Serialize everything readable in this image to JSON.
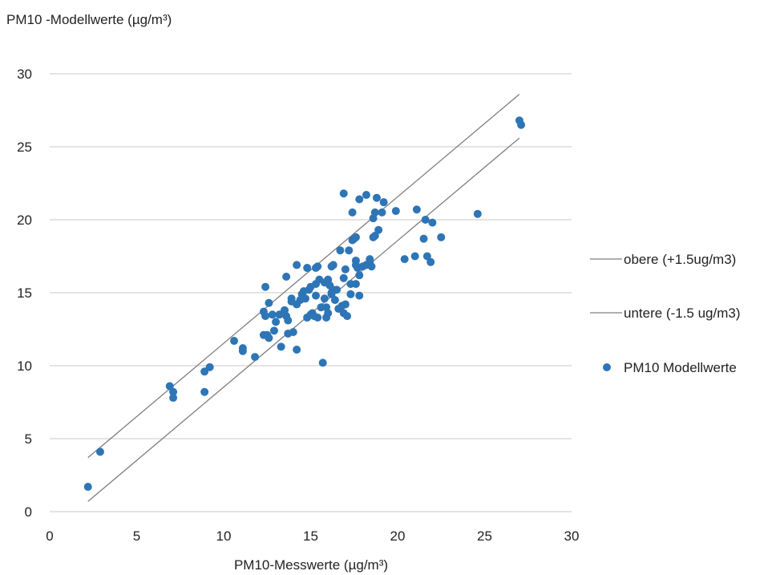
{
  "chart_data": {
    "type": "scatter",
    "ylabel": "PM10 -Modellwerte (µg/m³)",
    "xlabel": "PM10-Messwerte (µg/m³)",
    "xlim": [
      0,
      30
    ],
    "ylim": [
      0,
      30
    ],
    "x_ticks": [
      "0",
      "5",
      "10",
      "15",
      "20",
      "25",
      "30"
    ],
    "y_ticks": [
      "0",
      "5",
      "10",
      "15",
      "20",
      "25",
      "30"
    ],
    "grid": "horizontal",
    "legend_position": "right",
    "colors": {
      "points": "#2e75b6",
      "lines": "#7f7f7f",
      "grid": "#c8c8c8"
    },
    "series": [
      {
        "name": "obere (+1.5ug/m3)",
        "type": "line",
        "x": [
          2.2,
          27.0
        ],
        "y": [
          3.7,
          28.6
        ]
      },
      {
        "name": "untere (-1.5 ug/m3)",
        "type": "line",
        "x": [
          2.2,
          27.0
        ],
        "y": [
          0.7,
          25.6
        ]
      },
      {
        "name": "PM10 Modellwerte",
        "type": "scatter",
        "points": [
          [
            2.2,
            1.7
          ],
          [
            2.9,
            4.1
          ],
          [
            6.9,
            8.6
          ],
          [
            7.1,
            8.2
          ],
          [
            7.1,
            7.8
          ],
          [
            8.9,
            9.6
          ],
          [
            8.9,
            8.2
          ],
          [
            9.2,
            9.9
          ],
          [
            10.6,
            11.7
          ],
          [
            11.1,
            11.2
          ],
          [
            11.1,
            11.0
          ],
          [
            11.8,
            10.6
          ],
          [
            12.3,
            13.7
          ],
          [
            12.3,
            12.1
          ],
          [
            12.4,
            15.4
          ],
          [
            12.4,
            13.4
          ],
          [
            12.5,
            12.1
          ],
          [
            12.6,
            14.3
          ],
          [
            12.6,
            11.9
          ],
          [
            12.8,
            13.5
          ],
          [
            12.9,
            12.4
          ],
          [
            13.0,
            13.0
          ],
          [
            13.2,
            13.5
          ],
          [
            13.3,
            11.3
          ],
          [
            13.5,
            13.8
          ],
          [
            13.6,
            16.1
          ],
          [
            13.6,
            13.4
          ],
          [
            13.7,
            12.2
          ],
          [
            13.7,
            13.1
          ],
          [
            13.9,
            14.6
          ],
          [
            13.9,
            14.4
          ],
          [
            14.0,
            12.3
          ],
          [
            14.2,
            16.9
          ],
          [
            14.2,
            14.2
          ],
          [
            14.2,
            11.1
          ],
          [
            14.4,
            14.5
          ],
          [
            14.5,
            14.9
          ],
          [
            14.6,
            15.1
          ],
          [
            14.7,
            14.6
          ],
          [
            14.8,
            16.7
          ],
          [
            14.8,
            13.3
          ],
          [
            14.9,
            15.2
          ],
          [
            15.0,
            15.4
          ],
          [
            15.0,
            13.5
          ],
          [
            15.1,
            13.6
          ],
          [
            15.2,
            13.4
          ],
          [
            15.3,
            16.7
          ],
          [
            15.3,
            15.6
          ],
          [
            15.3,
            14.8
          ],
          [
            15.4,
            13.3
          ],
          [
            15.4,
            16.8
          ],
          [
            15.5,
            15.9
          ],
          [
            15.6,
            14.0
          ],
          [
            15.7,
            10.2
          ],
          [
            15.8,
            14.6
          ],
          [
            15.8,
            15.7
          ],
          [
            15.9,
            14.0
          ],
          [
            15.9,
            13.3
          ],
          [
            16.0,
            15.9
          ],
          [
            16.0,
            13.6
          ],
          [
            16.1,
            15.5
          ],
          [
            16.2,
            15.0
          ],
          [
            16.2,
            16.8
          ],
          [
            16.2,
            14.9
          ],
          [
            16.3,
            16.9
          ],
          [
            16.3,
            15.2
          ],
          [
            16.4,
            14.5
          ],
          [
            16.5,
            15.2
          ],
          [
            16.6,
            13.9
          ],
          [
            16.7,
            17.9
          ],
          [
            16.8,
            14.1
          ],
          [
            16.9,
            21.8
          ],
          [
            16.9,
            16.0
          ],
          [
            16.9,
            13.6
          ],
          [
            17.0,
            16.6
          ],
          [
            17.0,
            14.2
          ],
          [
            17.1,
            13.4
          ],
          [
            17.2,
            17.9
          ],
          [
            17.3,
            15.6
          ],
          [
            17.3,
            14.9
          ],
          [
            17.4,
            20.5
          ],
          [
            17.4,
            18.6
          ],
          [
            17.5,
            18.7
          ],
          [
            17.6,
            18.8
          ],
          [
            17.6,
            15.6
          ],
          [
            17.6,
            17.2
          ],
          [
            17.6,
            16.9
          ],
          [
            17.7,
            16.7
          ],
          [
            17.8,
            21.4
          ],
          [
            17.8,
            16.2
          ],
          [
            17.8,
            14.8
          ],
          [
            18.0,
            16.8
          ],
          [
            18.2,
            21.7
          ],
          [
            18.2,
            16.9
          ],
          [
            18.4,
            17.1
          ],
          [
            18.4,
            17.3
          ],
          [
            18.5,
            16.8
          ],
          [
            18.6,
            20.1
          ],
          [
            18.6,
            18.8
          ],
          [
            18.7,
            20.5
          ],
          [
            18.7,
            18.9
          ],
          [
            18.8,
            21.5
          ],
          [
            18.9,
            19.3
          ],
          [
            19.1,
            20.5
          ],
          [
            19.2,
            21.2
          ],
          [
            19.9,
            20.6
          ],
          [
            20.4,
            17.3
          ],
          [
            21.0,
            17.5
          ],
          [
            21.1,
            20.7
          ],
          [
            21.5,
            18.7
          ],
          [
            21.6,
            20.0
          ],
          [
            21.7,
            17.5
          ],
          [
            21.9,
            17.1
          ],
          [
            22.0,
            19.8
          ],
          [
            22.5,
            18.8
          ],
          [
            24.6,
            20.4
          ],
          [
            27.0,
            26.8
          ],
          [
            27.1,
            26.5
          ]
        ]
      }
    ]
  }
}
